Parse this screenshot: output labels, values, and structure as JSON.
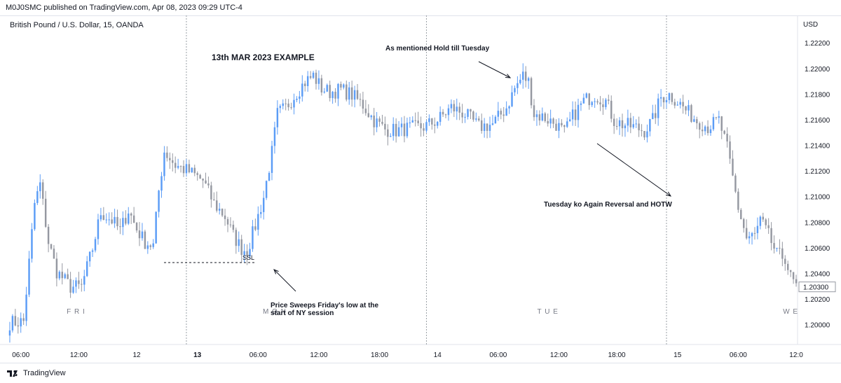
{
  "header": {
    "publisher_line": "M0J0SMC published on TradingView.com, Apr 08, 2023 09:29 UTC-4",
    "symbol_line": "British Pound / U.S. Dollar, 15, OANDA"
  },
  "footer": {
    "brand": "TradingView"
  },
  "colors": {
    "up": "#5b9cf6",
    "down": "#9598a1",
    "grid": "#e0e3eb",
    "divider": "#9aa0a6",
    "text": "#131722"
  },
  "chart_data": {
    "type": "candlestick",
    "title": "13th MAR 2023 EXAMPLE",
    "currency": "USD",
    "last_price": "1.20300",
    "ylim": [
      1.1985,
      1.2242
    ],
    "y_ticks": [
      "1.22200",
      "1.22000",
      "1.21800",
      "1.21600",
      "1.21400",
      "1.21200",
      "1.21000",
      "1.20800",
      "1.20600",
      "1.20400",
      "1.20200",
      "1.20000"
    ],
    "x_ticks": [
      "06:00",
      "12:00",
      "12",
      "13",
      "06:00",
      "12:00",
      "18:00",
      "14",
      "06:00",
      "12:00",
      "18:00",
      "15",
      "06:00",
      "12:0"
    ],
    "day_labels": [
      "FRI",
      "MON",
      "TUE",
      "WE"
    ],
    "series": [
      {
        "keypoints": [
          [
            0,
            1.2002
          ],
          [
            5,
            1.2003
          ],
          [
            9,
            1.2095
          ],
          [
            11,
            1.211
          ],
          [
            14,
            1.2065
          ],
          [
            17,
            1.2042
          ],
          [
            22,
            1.203
          ],
          [
            26,
            1.203
          ],
          [
            30,
            1.206
          ],
          [
            33,
            1.2088
          ],
          [
            37,
            1.2082
          ],
          [
            40,
            1.2074
          ],
          [
            43,
            1.209
          ],
          [
            46,
            1.2075
          ],
          [
            49,
            1.2065
          ],
          [
            52,
            1.2062
          ],
          [
            54,
            1.2105
          ],
          [
            56,
            1.2136
          ],
          [
            60,
            1.2125
          ],
          [
            65,
            1.212
          ],
          [
            70,
            1.2113
          ],
          [
            74,
            1.2095
          ],
          [
            78,
            1.2085
          ],
          [
            81,
            1.207
          ],
          [
            84,
            1.206
          ],
          [
            86,
            1.2058
          ],
          [
            89,
            1.2078
          ],
          [
            92,
            1.21
          ],
          [
            95,
            1.2135
          ],
          [
            97,
            1.2165
          ],
          [
            100,
            1.217
          ],
          [
            104,
            1.2182
          ],
          [
            107,
            1.219
          ],
          [
            110,
            1.2195
          ],
          [
            113,
            1.2185
          ],
          [
            116,
            1.2182
          ],
          [
            120,
            1.2184
          ],
          [
            124,
            1.218
          ],
          [
            128,
            1.2172
          ],
          [
            132,
            1.216
          ],
          [
            136,
            1.2153
          ],
          [
            140,
            1.2152
          ],
          [
            145,
            1.2154
          ],
          [
            150,
            1.2155
          ],
          [
            155,
            1.216
          ],
          [
            160,
            1.217
          ],
          [
            165,
            1.2165
          ],
          [
            170,
            1.2155
          ],
          [
            175,
            1.2157
          ],
          [
            180,
            1.217
          ],
          [
            183,
            1.2185
          ],
          [
            186,
            1.2195
          ],
          [
            188,
            1.219
          ],
          [
            190,
            1.2165
          ],
          [
            194,
            1.2162
          ],
          [
            198,
            1.2157
          ],
          [
            201,
            1.215
          ],
          [
            204,
            1.2163
          ],
          [
            208,
            1.2175
          ],
          [
            212,
            1.218
          ],
          [
            216,
            1.2175
          ],
          [
            219,
            1.216
          ],
          [
            222,
            1.2157
          ],
          [
            226,
            1.2155
          ],
          [
            230,
            1.2152
          ],
          [
            233,
            1.216
          ],
          [
            236,
            1.2178
          ],
          [
            239,
            1.218
          ],
          [
            242,
            1.2175
          ],
          [
            245,
            1.2168
          ],
          [
            249,
            1.216
          ],
          [
            253,
            1.2155
          ],
          [
            257,
            1.216
          ],
          [
            260,
            1.2138
          ],
          [
            262,
            1.2115
          ],
          [
            264,
            1.2092
          ],
          [
            267,
            1.2068
          ],
          [
            270,
            1.207
          ],
          [
            272,
            1.2082
          ],
          [
            275,
            1.207
          ],
          [
            278,
            1.2055
          ],
          [
            281,
            1.2053
          ],
          [
            283,
            1.2037
          ],
          [
            285,
            1.203
          ]
        ]
      }
    ],
    "annotations": [
      {
        "id": "title",
        "text": "13th MAR 2023 EXAMPLE"
      },
      {
        "id": "hold",
        "text": "As mentioned Hold till Tuesday"
      },
      {
        "id": "reversal",
        "text": "Tuesday ko Again Reversal and HOTW"
      },
      {
        "id": "sweep_line1",
        "text": "Price Sweeps Friday's low at the"
      },
      {
        "id": "sweep_line2",
        "text": "start of NY session"
      },
      {
        "id": "ssl",
        "text": "SSL"
      }
    ]
  }
}
